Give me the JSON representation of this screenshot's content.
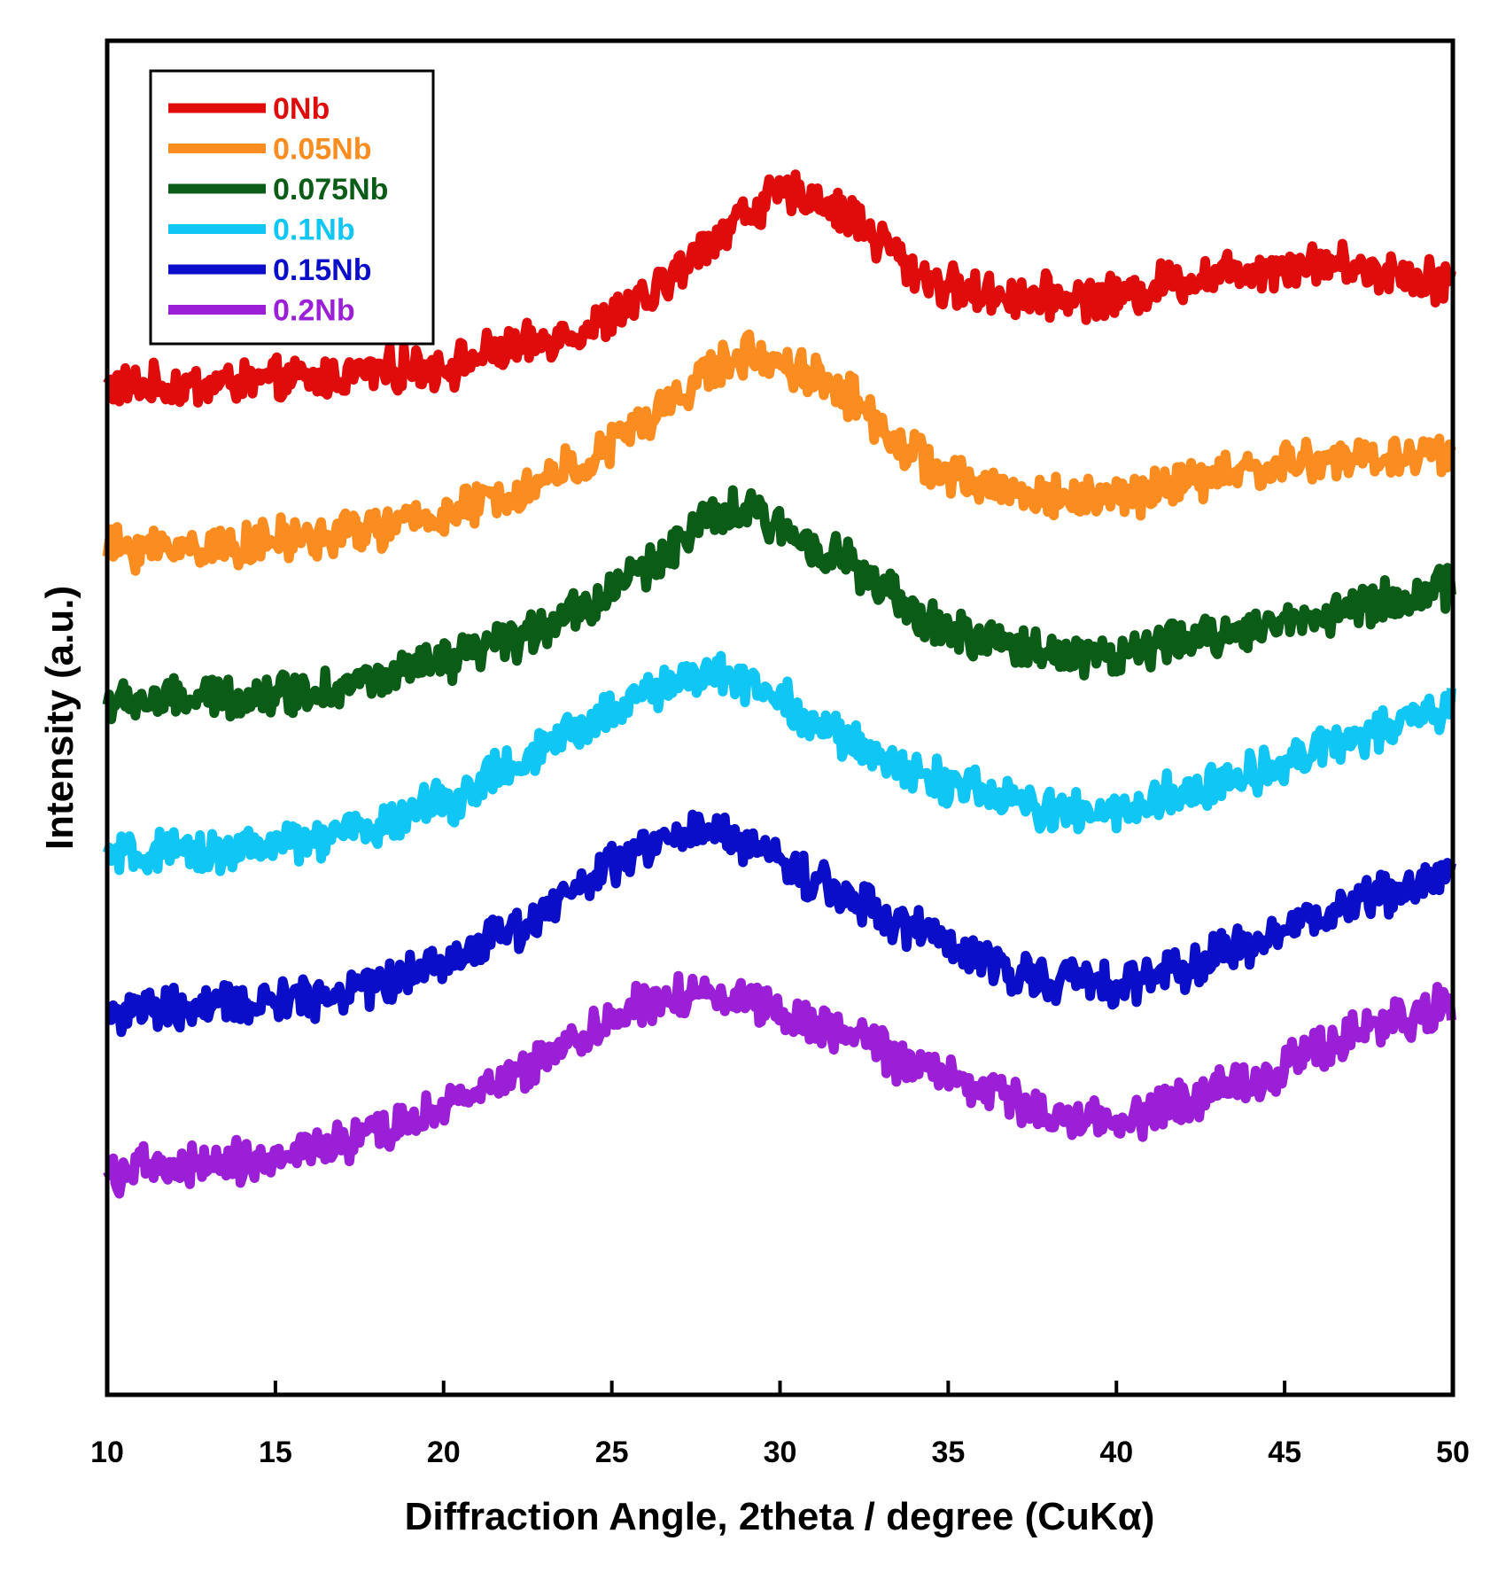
{
  "chart_data": {
    "type": "line",
    "title": "",
    "xlabel": "Diffraction Angle, 2theta / degree (CuKα)",
    "ylabel": "Intensity (a.u.)",
    "xlim": [
      10,
      50
    ],
    "ylim": [
      0,
      100
    ],
    "xticks": [
      "10",
      "15",
      "20",
      "25",
      "30",
      "35",
      "40",
      "45",
      "50"
    ],
    "yticks_shown": false,
    "grid": false,
    "legend": "top-left",
    "series": [
      {
        "name": "0Nb",
        "color": "#e00b0b",
        "x": [
          10,
          12,
          14,
          16,
          18,
          20,
          22,
          24,
          26,
          27,
          28,
          29,
          30,
          31,
          32,
          33,
          34,
          35,
          36,
          38,
          40,
          42,
          44,
          46,
          48,
          50
        ],
        "values": [
          74.5,
          74.5,
          74.8,
          75.0,
          75.6,
          76.0,
          77.2,
          78.6,
          80.7,
          83.0,
          85.5,
          87.3,
          88.6,
          88.5,
          87.1,
          85.3,
          83.0,
          81.8,
          81.3,
          81.1,
          81.1,
          82.4,
          83.2,
          83.6,
          83.0,
          82.3
        ]
      },
      {
        "name": "0.05Nb",
        "color": "#fb8c1f",
        "x": [
          10,
          12,
          14,
          16,
          18,
          20,
          22,
          24,
          26,
          27,
          28,
          29,
          30,
          31,
          32,
          33,
          34,
          35,
          36,
          38,
          40,
          42,
          44,
          46,
          48,
          50
        ],
        "values": [
          62.5,
          62.6,
          62.8,
          63.3,
          64.0,
          65.0,
          66.5,
          68.6,
          71.7,
          73.9,
          75.7,
          76.8,
          76.3,
          75.3,
          73.9,
          71.5,
          69.4,
          67.8,
          67.1,
          66.3,
          66.3,
          67.4,
          68.3,
          69.0,
          69.2,
          69.6
        ]
      },
      {
        "name": "0.075Nb",
        "color": "#0b5c17",
        "x": [
          10,
          12,
          14,
          16,
          18,
          20,
          22,
          24,
          26,
          27,
          28,
          29,
          30,
          31,
          32,
          33,
          34,
          35,
          36,
          38,
          40,
          42,
          44,
          46,
          48,
          50
        ],
        "values": [
          51.1,
          51.3,
          51.6,
          52.0,
          52.8,
          54.0,
          55.7,
          58.0,
          61.0,
          63.1,
          64.7,
          65.3,
          64.0,
          62.9,
          61.6,
          59.5,
          57.6,
          56.4,
          55.7,
          54.9,
          54.6,
          55.7,
          56.6,
          57.6,
          58.6,
          59.6
        ]
      },
      {
        "name": "0.1Nb",
        "color": "#10c6f4",
        "x": [
          10,
          12,
          14,
          16,
          18,
          20,
          22,
          24,
          25,
          26,
          27,
          28,
          29,
          30,
          31,
          32,
          34,
          36,
          38,
          40,
          42,
          44,
          46,
          48,
          50
        ],
        "values": [
          39.7,
          39.9,
          40.3,
          40.9,
          42.0,
          43.8,
          46.2,
          49.0,
          50.6,
          51.9,
          52.8,
          53.2,
          52.8,
          51.5,
          49.7,
          48.2,
          46.0,
          44.5,
          43.1,
          43.0,
          44.4,
          45.9,
          47.8,
          49.1,
          50.9
        ]
      },
      {
        "name": "0.15Nb",
        "color": "#0a0ec9",
        "x": [
          10,
          12,
          14,
          16,
          18,
          20,
          22,
          24,
          25,
          26,
          27,
          28,
          29,
          30,
          31,
          32,
          34,
          36,
          38,
          40,
          42,
          44,
          46,
          48,
          50
        ],
        "values": [
          28.2,
          28.4,
          28.8,
          29.4,
          30.3,
          32.0,
          34.4,
          37.4,
          38.9,
          40.4,
          41.2,
          41.4,
          40.9,
          39.5,
          38.0,
          36.9,
          34.4,
          32.0,
          30.7,
          30.3,
          31.6,
          33.2,
          35.4,
          37.1,
          38.6
        ]
      },
      {
        "name": "0.2Nb",
        "color": "#9b1fd6",
        "x": [
          10,
          12,
          14,
          16,
          18,
          20,
          22,
          24,
          25,
          26,
          27,
          28,
          29,
          30,
          31,
          32,
          34,
          36,
          38,
          40,
          42,
          44,
          46,
          48,
          50
        ],
        "values": [
          16.5,
          16.7,
          17.2,
          18.0,
          19.2,
          21.1,
          23.6,
          26.4,
          27.7,
          28.6,
          29.5,
          29.7,
          29.3,
          28.5,
          27.5,
          26.5,
          24.5,
          22.6,
          20.7,
          20.3,
          21.5,
          23.3,
          25.7,
          27.3,
          28.8
        ]
      }
    ]
  }
}
